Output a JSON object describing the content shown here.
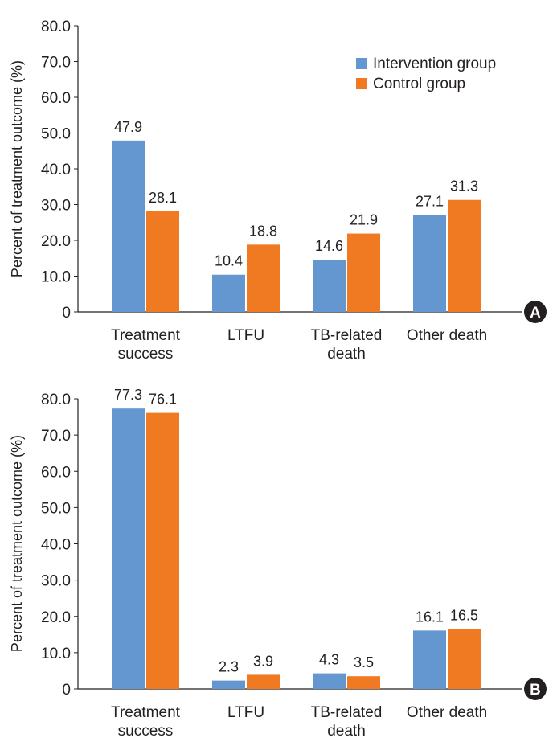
{
  "colors": {
    "intervention": "#6497d0",
    "control": "#f07a22",
    "axis": "#231f20"
  },
  "legend": {
    "items": [
      "Intervention group",
      "Control group"
    ]
  },
  "chart_data": [
    {
      "type": "bar",
      "panel": "A",
      "categories": [
        [
          "Treatment",
          "success"
        ],
        [
          "LTFU"
        ],
        [
          "TB-related",
          "death"
        ],
        [
          "Other death"
        ]
      ],
      "series": [
        {
          "name": "Intervention group",
          "values": [
            47.9,
            10.4,
            14.6,
            27.1
          ]
        },
        {
          "name": "Control group",
          "values": [
            28.1,
            18.8,
            21.9,
            31.3
          ]
        }
      ],
      "ylabel": "Percent of treatment outcome (%)",
      "ylim": [
        0,
        80
      ],
      "yticks": [
        "0",
        "10.0",
        "20.0",
        "30.0",
        "40.0",
        "50.0",
        "60.0",
        "70.0",
        "80.0"
      ],
      "grid": false,
      "legend": "top-right"
    },
    {
      "type": "bar",
      "panel": "B",
      "categories": [
        [
          "Treatment",
          "success"
        ],
        [
          "LTFU"
        ],
        [
          "TB-related",
          "death"
        ],
        [
          "Other death"
        ]
      ],
      "series": [
        {
          "name": "Intervention group",
          "values": [
            77.3,
            2.3,
            4.3,
            16.1
          ]
        },
        {
          "name": "Control group",
          "values": [
            76.1,
            3.9,
            3.5,
            16.5
          ]
        }
      ],
      "ylabel": "Percent of treatment outcome (%)",
      "ylim": [
        0,
        80
      ],
      "yticks": [
        "0",
        "10.0",
        "20.0",
        "30.0",
        "40.0",
        "50.0",
        "60.0",
        "70.0",
        "80.0"
      ],
      "grid": false
    }
  ]
}
